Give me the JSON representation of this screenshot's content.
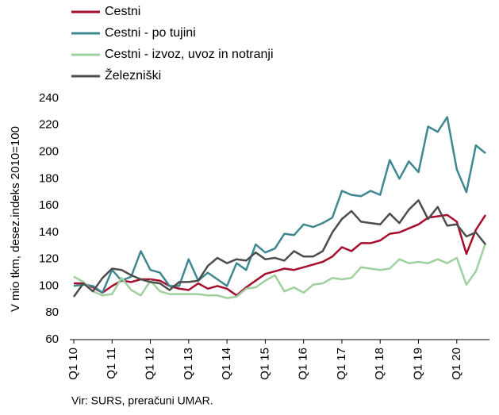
{
  "chart_data": {
    "type": "line",
    "y_label": "V mio tkm, desez.indeks 2010=100",
    "source": "Vir: SURS, preračuni UMAR.",
    "categories": [
      "Q1 10",
      null,
      null,
      null,
      "Q1 11",
      null,
      null,
      null,
      "Q1 12",
      null,
      null,
      null,
      "Q1 13",
      null,
      null,
      null,
      "Q1 14",
      null,
      null,
      null,
      "Q1 15",
      null,
      null,
      null,
      "Q1 16",
      null,
      null,
      null,
      "Q1 17",
      null,
      null,
      null,
      "Q1 18",
      null,
      null,
      null,
      "Q1 19",
      null,
      null,
      null,
      "Q1 20",
      null,
      null,
      null
    ],
    "series": [
      {
        "name": "Cestni",
        "color": "#a50f2d",
        "values": [
          102,
          102,
          99,
          95,
          100,
          104,
          103,
          105,
          105,
          104,
          100,
          98,
          97,
          102,
          98,
          100,
          98,
          93,
          99,
          104,
          109,
          111,
          113,
          112,
          114,
          116,
          118,
          122,
          129,
          126,
          132,
          132,
          134,
          139,
          140,
          143,
          146,
          151,
          152,
          153,
          148,
          124,
          142,
          153
        ]
      },
      {
        "name": "Cestni - po tujini",
        "color": "#3f8791",
        "values": [
          100,
          101,
          100,
          95,
          112,
          104,
          107,
          126,
          112,
          110,
          100,
          100,
          120,
          104,
          110,
          105,
          100,
          117,
          112,
          131,
          125,
          128,
          139,
          138,
          146,
          144,
          147,
          151,
          171,
          168,
          167,
          171,
          168,
          194,
          180,
          193,
          185,
          219,
          215,
          226,
          187,
          170,
          205,
          199
        ]
      },
      {
        "name": "Cestni - izvoz, uvoz in notranji",
        "color": "#9fd19f",
        "values": [
          107,
          103,
          96,
          93,
          94,
          106,
          97,
          93,
          104,
          96,
          94,
          94,
          94,
          94,
          93,
          93,
          91,
          92,
          98,
          99,
          104,
          108,
          96,
          99,
          95,
          101,
          102,
          106,
          105,
          106,
          114,
          113,
          112,
          113,
          120,
          117,
          118,
          117,
          120,
          117,
          121,
          101,
          111,
          132
        ]
      },
      {
        "name": "Železniški",
        "color": "#4d4d4d",
        "values": [
          92,
          102,
          96,
          106,
          113,
          112,
          108,
          105,
          103,
          102,
          97,
          103,
          103,
          104,
          115,
          121,
          117,
          120,
          119,
          125,
          120,
          121,
          119,
          126,
          122,
          122,
          126,
          140,
          150,
          156,
          148,
          147,
          146,
          154,
          147,
          157,
          164,
          150,
          159,
          145,
          146,
          137,
          140,
          131
        ]
      }
    ],
    "ylim": [
      60,
      240
    ],
    "yticks": [
      60,
      80,
      100,
      120,
      140,
      160,
      180,
      200,
      220,
      240
    ]
  }
}
